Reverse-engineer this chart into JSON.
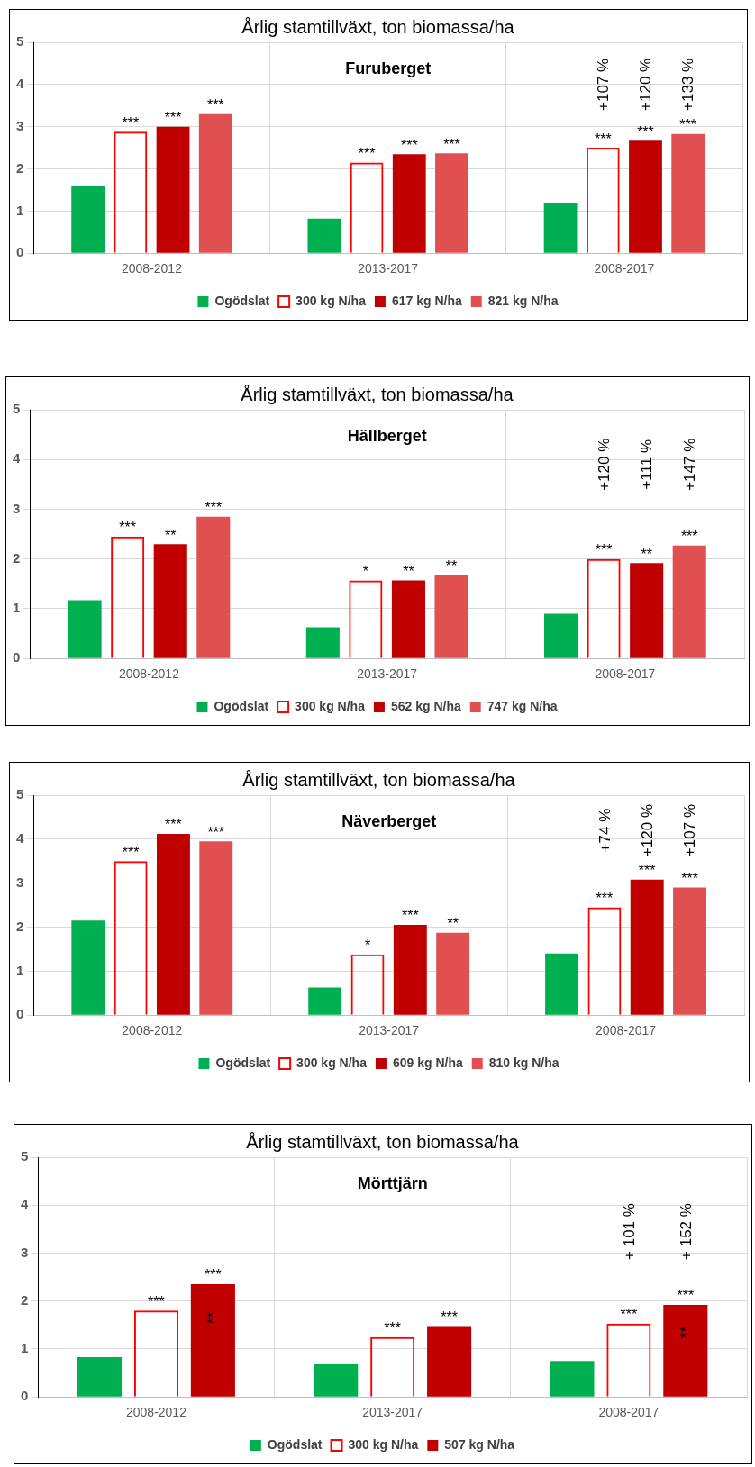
{
  "chart_data": [
    {
      "type": "bar",
      "title": "Årlig stamtillväxt, ton biomassa/ha",
      "categories": [
        "2008-2012",
        "2013-2017",
        "2008-2017"
      ],
      "ylim": [
        0,
        5
      ],
      "yticks": [
        0,
        1,
        2,
        3,
        4,
        5
      ],
      "grid": true,
      "legend": "bottom",
      "series": [
        {
          "name": "Ogödslat",
          "color": "#00b050",
          "values": [
            1.6,
            0.82,
            1.2
          ]
        },
        {
          "name": "300 kg N/ha",
          "color": "#ff0000",
          "values": [
            2.88,
            2.15,
            2.5
          ],
          "value_labels": [
            "***",
            "***",
            "***"
          ]
        },
        {
          "name": "617 kg N/ha",
          "color": "#c00000",
          "values": [
            3.0,
            2.35,
            2.67
          ],
          "value_labels": [
            "***",
            "***",
            "***"
          ]
        },
        {
          "name": "821 kg N/ha",
          "color": "#e05050",
          "values": [
            3.3,
            2.37,
            2.83
          ],
          "value_labels": [
            "***",
            "***",
            "***"
          ]
        }
      ],
      "annotations": [
        "Furuberget",
        "+107 %",
        "+120 %",
        "+133 %"
      ]
    },
    {
      "type": "bar",
      "title": "Årlig stamtillväxt, ton biomassa/ha",
      "categories": [
        "2008-2012",
        "2013-2017",
        "2008-2017"
      ],
      "ylim": [
        0,
        5
      ],
      "yticks": [
        0,
        1,
        2,
        3,
        4,
        5
      ],
      "grid": true,
      "legend": "bottom",
      "series": [
        {
          "name": "Ogödslat",
          "color": "#00b050",
          "values": [
            1.17,
            0.63,
            0.9
          ]
        },
        {
          "name": "300 kg N/ha",
          "color": "#ff0000",
          "values": [
            2.45,
            1.57,
            2.0
          ],
          "value_labels": [
            "***",
            "*",
            "***"
          ]
        },
        {
          "name": "562 kg N/ha",
          "color": "#c00000",
          "values": [
            2.3,
            1.57,
            1.92
          ],
          "value_labels": [
            "**",
            "**",
            "**"
          ]
        },
        {
          "name": "747 kg N/ha",
          "color": "#e05050",
          "values": [
            2.85,
            1.68,
            2.27
          ],
          "value_labels": [
            "***",
            "**",
            "***"
          ]
        }
      ],
      "annotations": [
        "Hällberget",
        "+120 %",
        "+111 %",
        "+147 %"
      ]
    },
    {
      "type": "bar",
      "title": "Årlig stamtillväxt, ton biomassa/ha",
      "categories": [
        "2008-2012",
        "2013-2017",
        "2008-2017"
      ],
      "ylim": [
        0,
        5
      ],
      "yticks": [
        0,
        1,
        2,
        3,
        4,
        5
      ],
      "grid": true,
      "legend": "bottom",
      "series": [
        {
          "name": "Ogödslat",
          "color": "#00b050",
          "values": [
            2.15,
            0.63,
            1.4
          ]
        },
        {
          "name": "300 kg N/ha",
          "color": "#ff0000",
          "values": [
            3.5,
            1.38,
            2.45
          ],
          "value_labels": [
            "***",
            "*",
            "***"
          ]
        },
        {
          "name": "609 kg N/ha",
          "color": "#c00000",
          "values": [
            4.12,
            2.05,
            3.08
          ],
          "value_labels": [
            "***",
            "***",
            "***"
          ]
        },
        {
          "name": "810 kg N/ha",
          "color": "#e05050",
          "values": [
            3.95,
            1.87,
            2.9
          ],
          "value_labels": [
            "***",
            "**",
            "***"
          ]
        }
      ],
      "annotations": [
        "Näverberget",
        "+74 %",
        "+120 %",
        "+107 %"
      ]
    },
    {
      "type": "bar",
      "title": "Årlig stamtillväxt, ton biomassa/ha",
      "categories": [
        "2008-2012",
        "2013-2017",
        "2008-2017"
      ],
      "ylim": [
        0,
        5
      ],
      "yticks": [
        0,
        1,
        2,
        3,
        4,
        5
      ],
      "grid": true,
      "legend": "bottom",
      "series": [
        {
          "name": "Ogödslat",
          "color": "#00b050",
          "values": [
            0.83,
            0.68,
            0.75
          ]
        },
        {
          "name": "300 kg N/ha",
          "color": "#ff0000",
          "values": [
            1.8,
            1.25,
            1.53
          ],
          "value_labels": [
            "***",
            "***",
            "***"
          ]
        },
        {
          "name": "507 kg N/ha",
          "color": "#c00000",
          "values": [
            2.35,
            1.48,
            1.92
          ],
          "value_labels": [
            "***",
            "***",
            "***"
          ]
        }
      ],
      "annotations": [
        "Mörttjärn",
        "**",
        "+ 101 %",
        "+ 152 %",
        "**"
      ]
    }
  ]
}
